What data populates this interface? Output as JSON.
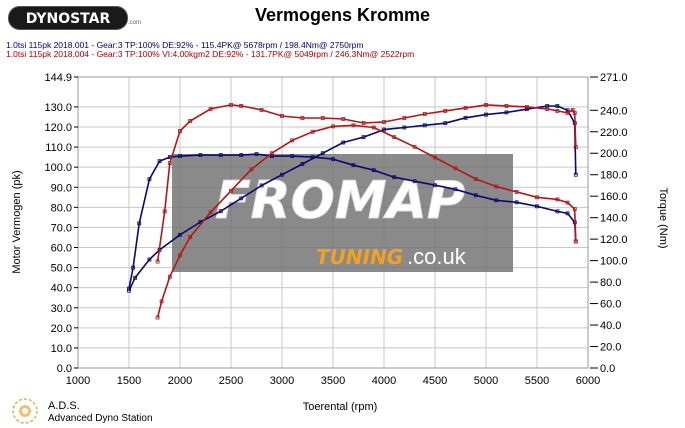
{
  "header": {
    "logo_text": "DYNOSTAR",
    "logo_subtext": ".com",
    "title": "Vermogens Kromme",
    "runs": [
      "1.0tsi 115pk 2018.001 - Gear:3 TP:100% DE:92%  -  115.4PK@ 5678rpm / 198.4Nm@ 2750rpm",
      "1.0tsi 115pk 2018.004 - Gear:3 TP:100% VI:4.00kgm2 DE:92%  -  131.7PK@ 5049rpm / 246.3Nm@ 2522rpm"
    ]
  },
  "watermark": {
    "brand_text": "FROMAP",
    "tuning_text": "TUNING",
    "domain_text": ".co.uk"
  },
  "footer": {
    "name": "A.D.S.",
    "subtitle": "Advanced Dyno Station"
  },
  "colors": {
    "run1": "#0a0a6e",
    "run2": "#b01818",
    "grid": "#c8c8c8"
  },
  "chart_data": {
    "type": "line",
    "xlabel": "Toerental (rpm)",
    "ylabel_left": "Motor Vermogen (pk)",
    "ylabel_right": "Torque (Nm)",
    "xlim": [
      1000,
      6000
    ],
    "ylim_left": [
      0,
      144.9
    ],
    "ylim_right": [
      0,
      271.0
    ],
    "x_ticks": [
      1000,
      1500,
      2000,
      2500,
      3000,
      3500,
      4000,
      4500,
      5000,
      5500,
      6000
    ],
    "y_ticks_left": [
      "0.0",
      "10.0",
      "20.0",
      "30.0",
      "40.0",
      "50.0",
      "60.0",
      "70.0",
      "80.0",
      "90.0",
      "100.0",
      "110.0",
      "120.0",
      "130.0",
      "144.9"
    ],
    "y_ticks_right": [
      "0.0",
      "20.0",
      "40.0",
      "60.0",
      "80.0",
      "100.0",
      "120.0",
      "140.0",
      "160.0",
      "180.0",
      "200.0",
      "220.0",
      "240.0",
      "271.0"
    ],
    "grid": true,
    "series": [
      {
        "name": "1.0tsi 115pk 2018.001",
        "kind": "torque",
        "axis": "right",
        "color": "#0a0a6e",
        "x": [
          1500,
          1560,
          1700,
          1800,
          2000,
          2200,
          2400,
          2600,
          2800,
          3000,
          3200,
          3400,
          3600,
          3800,
          4000,
          4200,
          4400,
          4600,
          4800,
          5000,
          5200,
          5400,
          5600,
          5700,
          5800,
          5870,
          5880
        ],
        "y": [
          72,
          84,
          101,
          110,
          124,
          136,
          146,
          158,
          170,
          180,
          190,
          200,
          210,
          215,
          222,
          224,
          226,
          228,
          233,
          236,
          238,
          241,
          244,
          244,
          240,
          228,
          180
        ]
      },
      {
        "name": "1.0tsi 115pk 2018.001",
        "kind": "power",
        "axis": "left",
        "color": "#0a0a6e",
        "x": [
          1500,
          1540,
          1600,
          1700,
          1800,
          1900,
          2000,
          2200,
          2400,
          2600,
          2750,
          2900,
          3100,
          3300,
          3500,
          3700,
          3900,
          4100,
          4300,
          4500,
          4700,
          4900,
          5100,
          5300,
          5500,
          5700,
          5800,
          5870,
          5880
        ],
        "y": [
          39.5,
          50,
          72,
          94,
          103,
          105,
          105.5,
          106,
          106,
          106,
          106.5,
          105.5,
          105.5,
          105,
          104,
          101,
          98.5,
          95,
          93,
          91,
          89,
          86,
          83.5,
          82.5,
          80.5,
          78,
          77,
          72.5,
          63
        ]
      },
      {
        "name": "1.0tsi 115pk 2018.004",
        "kind": "torque",
        "axis": "right",
        "color": "#b01818",
        "x": [
          1780,
          1820,
          1900,
          2000,
          2100,
          2300,
          2500,
          2700,
          2900,
          3100,
          3300,
          3500,
          3700,
          3900,
          4100,
          4300,
          4500,
          4700,
          4900,
          5100,
          5300,
          5500,
          5700,
          5800,
          5870,
          5880
        ],
        "y": [
          47,
          62,
          85,
          105,
          122,
          145,
          165,
          185,
          200,
          212,
          220,
          225,
          226,
          224,
          215,
          206,
          196,
          186,
          176,
          169,
          164,
          159,
          157,
          154,
          148,
          118
        ]
      },
      {
        "name": "1.0tsi 115pk 2018.004",
        "kind": "power",
        "axis": "left",
        "color": "#b01818",
        "x": [
          1780,
          1850,
          1900,
          2000,
          2100,
          2300,
          2500,
          2600,
          2800,
          3000,
          3200,
          3400,
          3600,
          3800,
          4000,
          4200,
          4400,
          4600,
          4800,
          5000,
          5200,
          5400,
          5600,
          5700,
          5800,
          5850,
          5870,
          5880
        ],
        "y": [
          53,
          78,
          102,
          118,
          123,
          129,
          131,
          130.5,
          128.5,
          125.5,
          124.5,
          124.5,
          124,
          122,
          122.5,
          124.5,
          126.5,
          128,
          129.5,
          131,
          130.5,
          130,
          129,
          128,
          127,
          128.5,
          127,
          110
        ]
      }
    ]
  }
}
